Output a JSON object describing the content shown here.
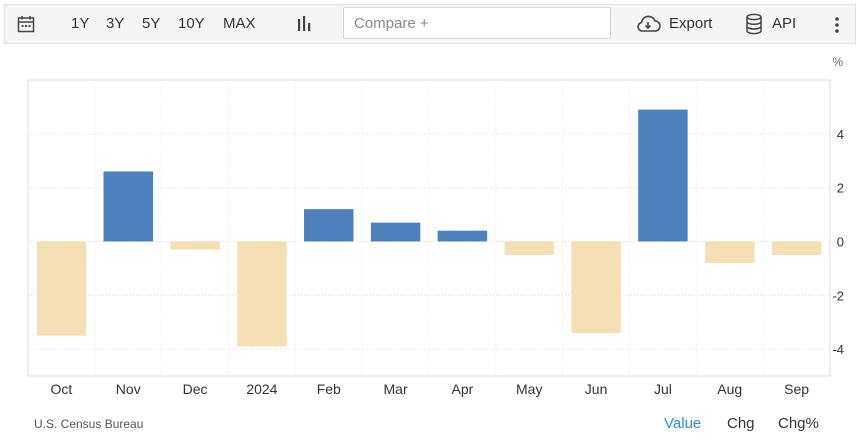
{
  "toolbar": {
    "ranges": [
      "1Y",
      "3Y",
      "5Y",
      "10Y",
      "MAX"
    ],
    "compare_placeholder": "Compare +",
    "export_label": "Export",
    "api_label": "API"
  },
  "chart_data": {
    "type": "bar",
    "categories": [
      "Oct",
      "Nov",
      "Dec",
      "2024",
      "Feb",
      "Mar",
      "Apr",
      "May",
      "Jun",
      "Jul",
      "Aug",
      "Sep"
    ],
    "values": [
      -3.5,
      2.6,
      -0.3,
      -3.9,
      1.2,
      0.7,
      0.4,
      -0.5,
      -3.4,
      4.9,
      -0.8,
      -0.5
    ],
    "ylim": [
      -5,
      6
    ],
    "yticks": [
      -4,
      -2,
      0,
      2,
      4
    ],
    "ylabel": "%",
    "grid": true,
    "colors": {
      "positive": "#4e80bd",
      "negative": "#f5dfb4"
    }
  },
  "footer": {
    "source": "U.S. Census Bureau",
    "modes": [
      "Value",
      "Chg",
      "Chg%"
    ],
    "active_mode": "Value",
    "active_color": "#2f8fdc"
  }
}
